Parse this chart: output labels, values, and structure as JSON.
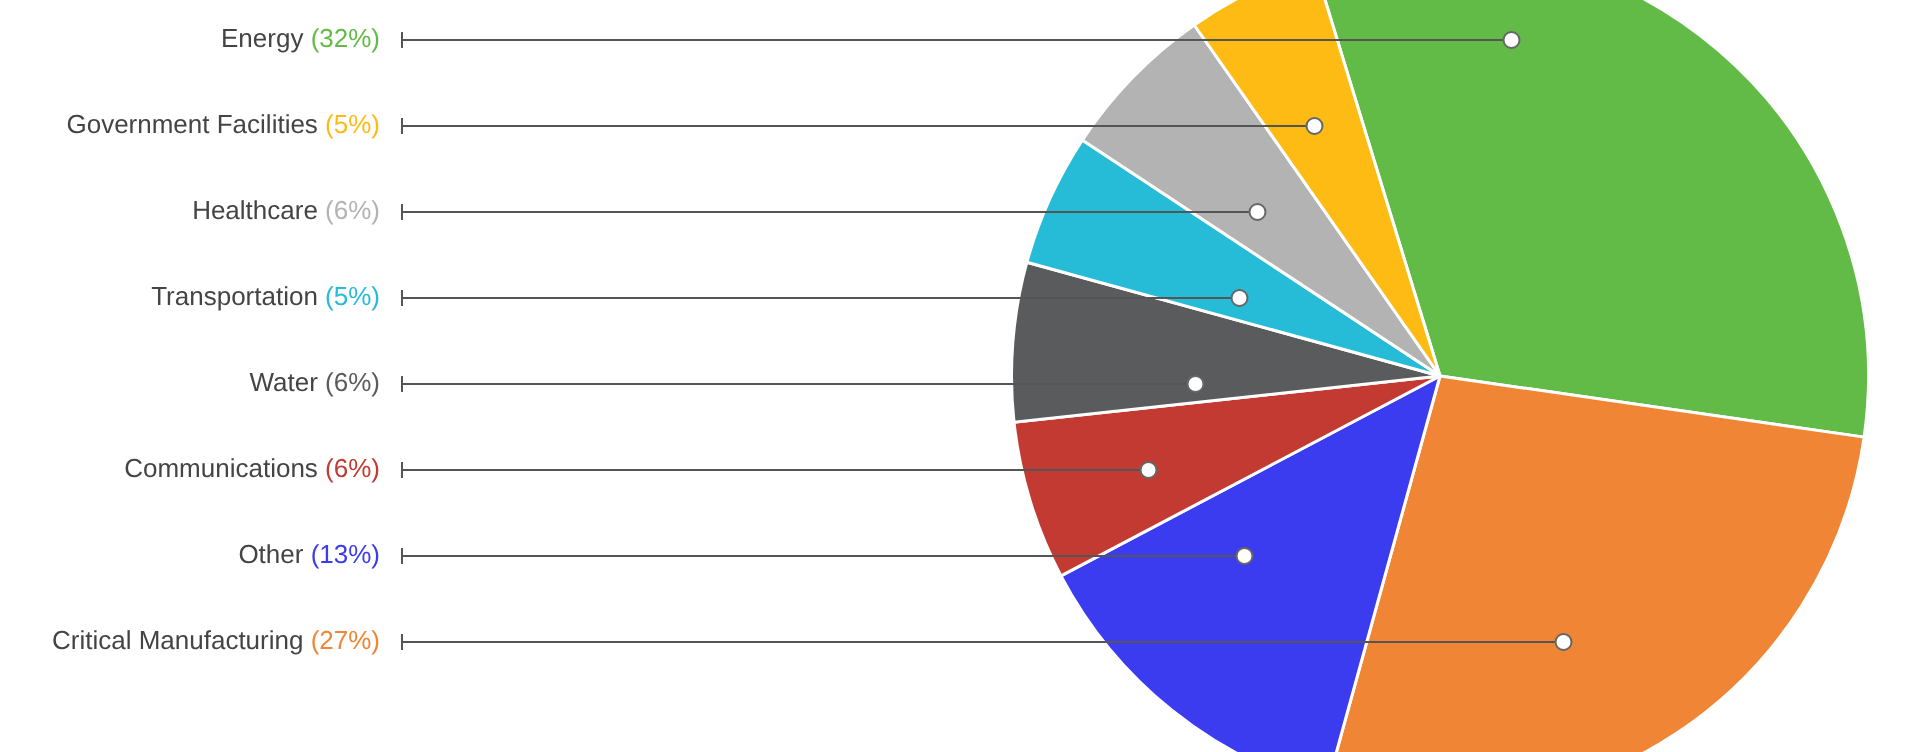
{
  "chart_data": {
    "type": "pie",
    "categories": [
      "Energy",
      "Critical Manufacturing",
      "Other",
      "Communications",
      "Water",
      "Transportation",
      "Healthcare",
      "Government Facilities"
    ],
    "values": [
      32,
      27,
      13,
      6,
      6,
      5,
      6,
      5
    ],
    "colors": [
      "#62bb47",
      "#ef8535",
      "#3b3bef",
      "#c23a31",
      "#5a5b5d",
      "#26bcd7",
      "#b3b3b3",
      "#fdbb14"
    ],
    "value_labels": [
      "(32%)",
      "(27%)",
      "(13%)",
      "(6%)",
      "(6%)",
      "(5%)",
      "(6%)",
      "(5%)"
    ]
  }
}
